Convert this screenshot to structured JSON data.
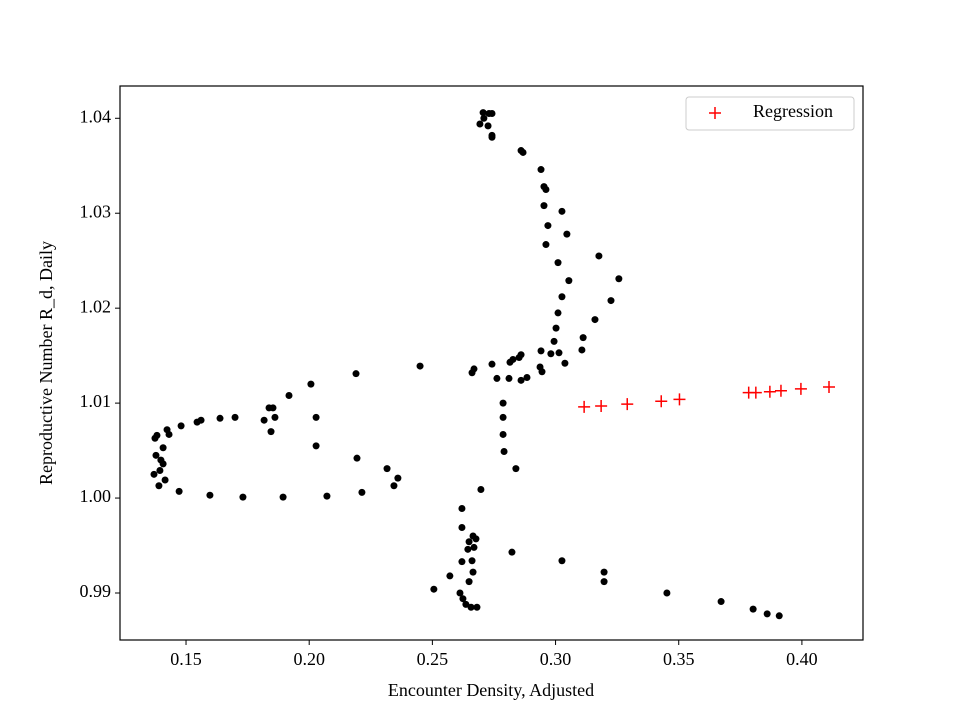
{
  "chart_data": {
    "type": "scatter",
    "xlabel": "Encounter Density, Adjusted",
    "ylabel": "Reproductive Number R_d, Daily",
    "xlim": [
      0.1232,
      0.4248
    ],
    "ylim": [
      0.98505,
      1.0434
    ],
    "xticks": [
      0.15,
      {
        "value": 0.2,
        "label": "0.20"
      },
      0.25,
      {
        "value": 0.3,
        "label": "0.30"
      },
      0.35,
      {
        "value": 0.4,
        "label": "0.40"
      }
    ],
    "yticks": [
      0.99,
      {
        "value": 1.0,
        "label": "1.00"
      },
      1.01,
      1.02,
      1.03,
      1.04
    ],
    "legend": "upper right",
    "series": [
      {
        "color": "#000000",
        "marker": "o",
        "x": [
          0.2706,
          0.273,
          0.2742,
          0.2709,
          0.2693,
          0.2726,
          0.2742,
          0.2742,
          0.286,
          0.2868,
          0.2941,
          0.2953,
          0.2961,
          0.2953,
          0.3026,
          0.2969,
          0.3046,
          0.2961,
          0.301,
          0.3176,
          0.3054,
          0.3257,
          0.3026,
          0.3225,
          0.301,
          0.316,
          0.3002,
          0.3112,
          0.2994,
          0.3107,
          0.2981,
          0.3014,
          0.2941,
          0.3038,
          0.2937,
          0.2945,
          0.2669,
          0.2661,
          0.245,
          0.2742,
          0.286,
          0.2852,
          0.2827,
          0.2815,
          0.286,
          0.2811,
          0.2762,
          0.2884,
          0.219,
          0.2007,
          0.1853,
          0.1918,
          0.2787,
          0.1837,
          0.1861,
          0.1699,
          0.1638,
          0.1817,
          0.1561,
          0.1545,
          0.2028,
          0.148,
          0.1423,
          0.1845,
          0.1382,
          0.1374,
          0.1431,
          0.1407,
          0.1378,
          0.2028,
          0.1398,
          0.1407,
          0.2194,
          0.137,
          0.1394,
          0.236,
          0.2316,
          0.2344,
          0.1415,
          0.139,
          0.1472,
          0.1597,
          0.1731,
          0.1894,
          0.2072,
          0.2214,
          0.2791,
          0.2787,
          0.2787,
          0.2839,
          0.2697,
          0.262,
          0.262,
          0.2665,
          0.2677,
          0.2649,
          0.2669,
          0.2644,
          0.262,
          0.2661,
          0.2665,
          0.2649,
          0.2506,
          0.2571,
          0.2612,
          0.2624,
          0.2636,
          0.2657,
          0.2681,
          0.2823,
          0.3026,
          0.3197,
          0.3197,
          0.3452,
          0.3672,
          0.3802,
          0.3859,
          0.3908
        ],
        "values": [
          1.0406,
          1.0405,
          1.0405,
          1.04,
          1.0394,
          1.0392,
          1.0382,
          1.038,
          1.0366,
          1.0364,
          1.0346,
          1.0328,
          1.0325,
          1.0308,
          1.0302,
          1.0287,
          1.0278,
          1.0267,
          1.0248,
          1.0255,
          1.0229,
          1.0231,
          1.0212,
          1.0208,
          1.0195,
          1.0188,
          1.0179,
          1.0169,
          1.0165,
          1.0156,
          1.0152,
          1.0153,
          1.0155,
          1.0142,
          1.0138,
          1.0133,
          1.0136,
          1.0132,
          1.0139,
          1.0141,
          1.0151,
          1.0148,
          1.0146,
          1.0143,
          1.0124,
          1.0126,
          1.0126,
          1.0127,
          1.0131,
          1.012,
          1.0095,
          1.0108,
          1.01,
          1.0095,
          1.0085,
          1.0085,
          1.0084,
          1.0082,
          1.0082,
          1.008,
          1.0085,
          1.0076,
          1.0072,
          1.007,
          1.0066,
          1.0063,
          1.0067,
          1.0053,
          1.0045,
          1.0055,
          1.004,
          1.0036,
          1.0042,
          1.0025,
          1.0029,
          1.0021,
          1.0031,
          1.0013,
          1.0019,
          1.0013,
          1.0007,
          1.0003,
          1.0001,
          1.0001,
          1.0002,
          1.0006,
          1.0049,
          1.0067,
          1.0085,
          1.0031,
          1.0009,
          0.9989,
          0.9969,
          0.996,
          0.9957,
          0.9954,
          0.9948,
          0.9946,
          0.9933,
          0.9934,
          0.9922,
          0.9912,
          0.9904,
          0.9918,
          0.99,
          0.9894,
          0.9888,
          0.9885,
          0.9885,
          0.9943,
          0.9934,
          0.9922,
          0.9912,
          0.99,
          0.9891,
          0.9883,
          0.9878,
          0.9876
        ]
      },
      {
        "name": "Regression",
        "color": "#ff0000",
        "marker": "+",
        "x": [
          0.3116,
          0.3185,
          0.3291,
          0.3429,
          0.3503,
          0.3784,
          0.3813,
          0.387,
          0.3915,
          0.3996,
          0.411
        ],
        "values": [
          1.0096,
          1.0097,
          1.0099,
          1.0102,
          1.0104,
          1.0111,
          1.0111,
          1.0112,
          1.0113,
          1.0115,
          1.0117
        ]
      }
    ]
  }
}
